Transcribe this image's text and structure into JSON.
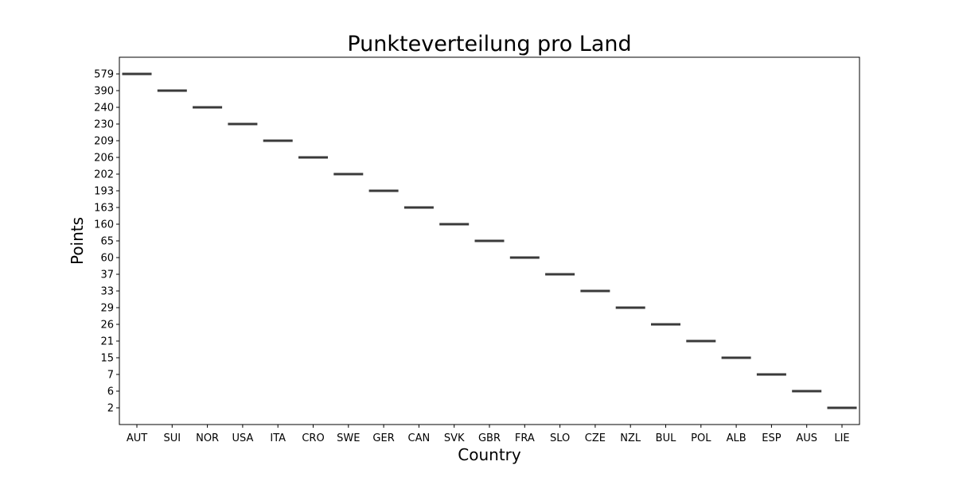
{
  "chart_data": {
    "type": "box",
    "title": "Punkteverteilung pro Land",
    "xlabel": "Country",
    "ylabel": "Points",
    "y_scale": "categorical",
    "y_ticks": [
      "579",
      "390",
      "240",
      "230",
      "209",
      "206",
      "202",
      "193",
      "163",
      "160",
      "65",
      "60",
      "37",
      "33",
      "29",
      "26",
      "21",
      "15",
      "7",
      "6",
      "2"
    ],
    "categories": [
      "AUT",
      "SUI",
      "NOR",
      "USA",
      "ITA",
      "CRO",
      "SWE",
      "GER",
      "CAN",
      "SVK",
      "GBR",
      "FRA",
      "SLO",
      "CZE",
      "NZL",
      "BUL",
      "POL",
      "ALB",
      "ESP",
      "AUS",
      "LIE"
    ],
    "values": [
      579,
      390,
      240,
      230,
      209,
      206,
      202,
      193,
      163,
      160,
      65,
      60,
      37,
      33,
      29,
      26,
      21,
      15,
      7,
      6,
      2
    ],
    "grid": false,
    "box_color": "#4c72b0",
    "line_color": "#3a3a3a"
  }
}
